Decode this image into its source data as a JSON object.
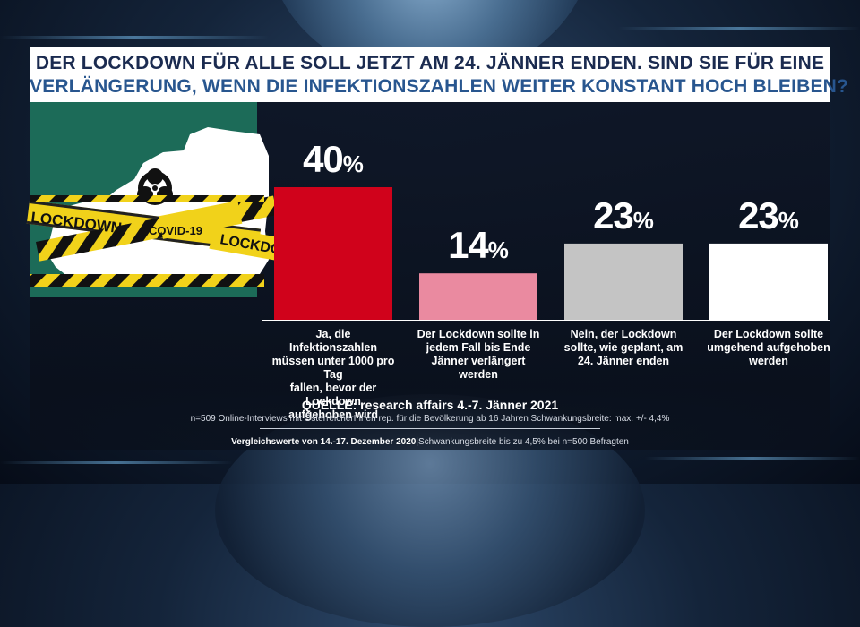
{
  "header": {
    "title_line1": "DER LOCKDOWN FÜR ALLE SOLL JETZT AM 24. JÄNNER ENDEN. SIND SIE FÜR EINE",
    "title_line2": "VERLÄNGERUNG, WENN DIE INFEKTIONSZAHLEN WEITER KONSTANT HOCH BLEIBEN?"
  },
  "illustration": {
    "tape_text_1": "LOCKDOWN",
    "tape_text_2": "COVID-19",
    "tape_text_3": "LOCKDOWN",
    "icon": "biohazard-icon",
    "map_color": "#ffffff",
    "panel_color": "#1c6b58",
    "tape_color": "#f1d21a"
  },
  "chart_data": {
    "type": "bar",
    "categories": [
      "Ja, die Infektionszahlen müssen unter 1000 pro Tag fallen, bevor der Lockdown aufgehoben wird",
      "Der Lockdown sollte in jedem Fall bis Ende Jänner verlängert werden",
      "Nein, der Lockdown sollte, wie geplant, am 24. Jänner enden",
      "Der Lockdown sollte umgehend aufgehoben werden"
    ],
    "category_lines": [
      [
        "Ja, die Infektionszahlen",
        "müssen unter 1000 pro Tag",
        "fallen, bevor der Lockdown",
        "aufgehoben wird"
      ],
      [
        "Der Lockdown sollte in",
        "jedem Fall bis Ende",
        "Jänner verlängert werden"
      ],
      [
        "Nein, der Lockdown",
        "sollte, wie geplant, am",
        "24. Jänner enden"
      ],
      [
        "Der Lockdown sollte",
        "umgehend aufgehoben",
        "werden"
      ]
    ],
    "values": [
      40,
      14,
      23,
      23
    ],
    "value_labels": [
      "40",
      "14",
      "23",
      "23"
    ],
    "unit": "%",
    "colors": [
      "#d0021b",
      "#ea8aa0",
      "#c4c4c4",
      "#ffffff"
    ],
    "ylim": [
      0,
      46
    ],
    "grid": false,
    "legend": "none"
  },
  "footer": {
    "source": "QUELLE: research affairs 4.-7. Jänner 2021",
    "method": "n=509 Online-Interviews mit ÖsterreicherInnen rep. für die Bevölkerung ab 16 Jahren Schwankungsbreite: max. +/- 4,4%",
    "compare_bold": "Vergleichswerte von 14.-17. Dezember 2020",
    "compare_rest": "Schwankungsbreite bis zu 4,5% bei n=500 Befragten"
  }
}
